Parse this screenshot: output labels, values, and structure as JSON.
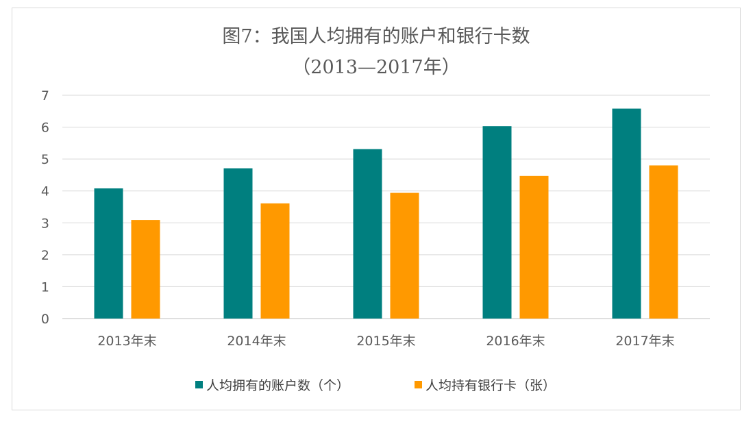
{
  "chart_data": {
    "type": "bar",
    "title": "图7：我国人均拥有的账户和银行卡数",
    "subtitle": "（2013—2017年）",
    "categories": [
      "2013年末",
      "2014年末",
      "2015年末",
      "2016年末",
      "2017年末"
    ],
    "series": [
      {
        "name": "人均拥有的账户数（个）",
        "values": [
          4.08,
          4.71,
          5.31,
          6.03,
          6.58
        ],
        "color": "#007f7f"
      },
      {
        "name": "人均持有银行卡（张）",
        "values": [
          3.09,
          3.61,
          3.94,
          4.47,
          4.8
        ],
        "color": "#ff9900"
      }
    ],
    "xlabel": "",
    "ylabel": "",
    "ylim": [
      0,
      7
    ],
    "yticks": [
      "0",
      "1",
      "2",
      "3",
      "4",
      "5",
      "6",
      "7"
    ],
    "grid": true,
    "legend": "bottom"
  }
}
